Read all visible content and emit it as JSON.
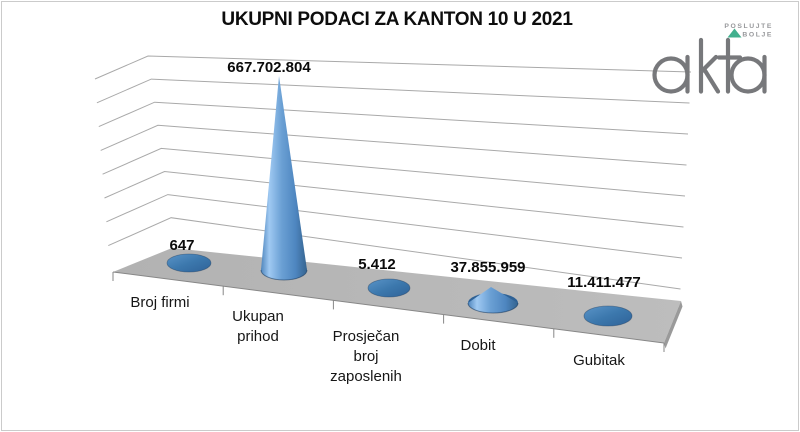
{
  "title": "UKUPNI PODACI ZA KANTON 10 U 2021",
  "logo": {
    "brand": "akta",
    "tagline_line1": "POSLUJTE",
    "tagline_line2": "BOLJE"
  },
  "colors": {
    "cone_blue_light": "#9fc9f2",
    "cone_blue_mid": "#4e86c0",
    "cone_blue_dark": "#2f6298",
    "flat_ellipse_blue": "#3c78ad",
    "floor_gray": "#b7b7b7",
    "floor_side_gray": "#9a9a9a",
    "gridline_gray": "#a9a9a9",
    "brand_gray": "#77787b",
    "brand_green": "#41b08e",
    "text_black": "#0d0d0d"
  },
  "chart_data": {
    "type": "bar",
    "subtype": "3d-cone",
    "title": "UKUPNI PODACI ZA KANTON 10 U 2021",
    "categories": [
      "Broj firmi",
      "Ukupan prihod",
      "Prosječan broj zaposlenih",
      "Dobit",
      "Gubitak"
    ],
    "category_label_lines": [
      [
        "Broj firmi"
      ],
      [
        "Ukupan",
        "prihod"
      ],
      [
        "Prosječan",
        "broj",
        "zaposlenih"
      ],
      [
        "Dobit"
      ],
      [
        "Gubitak"
      ]
    ],
    "values": [
      647,
      667702804,
      5412,
      37855959,
      11411477
    ],
    "value_labels": [
      "647",
      "667.702.804",
      "5.412",
      "37.855.959",
      "11.411.477"
    ],
    "xlabel": "",
    "ylabel": "",
    "ylim": [
      0,
      750000000
    ],
    "grid": true,
    "legend": false
  }
}
